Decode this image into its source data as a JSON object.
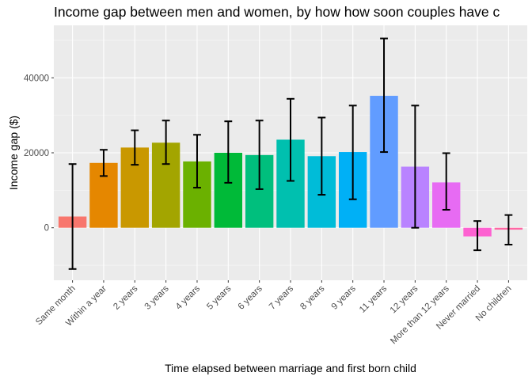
{
  "chart_data": {
    "type": "bar",
    "title": "Income gap between men and women, by how how soon couples have c",
    "xlabel": "Time elapsed between marriage and first born child",
    "ylabel": "Income gap ($)",
    "categories": [
      "Same month",
      "Within a year",
      "2 years",
      "3 years",
      "4 years",
      "5 years",
      "6 years",
      "7 years",
      "8 years",
      "9 years",
      "11 years",
      "12 years",
      "More than 12 years",
      "Never married",
      "No children"
    ],
    "values": [
      3000,
      17300,
      21400,
      22700,
      17700,
      20000,
      19400,
      23500,
      19100,
      20200,
      35200,
      16300,
      12100,
      -2300,
      -500
    ],
    "error_low": [
      -11000,
      13800,
      16800,
      17000,
      10700,
      12000,
      10300,
      12500,
      8800,
      7600,
      20200,
      0,
      4800,
      -6000,
      -4500
    ],
    "error_high": [
      17000,
      20800,
      26000,
      28600,
      24800,
      28400,
      28600,
      34400,
      29400,
      32600,
      50500,
      32600,
      19900,
      1800,
      3400
    ],
    "colors": [
      "#F8766D",
      "#E58700",
      "#C99800",
      "#A3A500",
      "#6BB100",
      "#00BA38",
      "#00BF7D",
      "#00C0AF",
      "#00BCD8",
      "#00B0F6",
      "#619CFF",
      "#B983FF",
      "#E76BF3",
      "#FD61D1",
      "#FF67A4"
    ],
    "yticks": [
      0,
      20000,
      40000
    ],
    "ylim": [
      -14000,
      54000
    ],
    "grid": true,
    "legend": "none"
  }
}
